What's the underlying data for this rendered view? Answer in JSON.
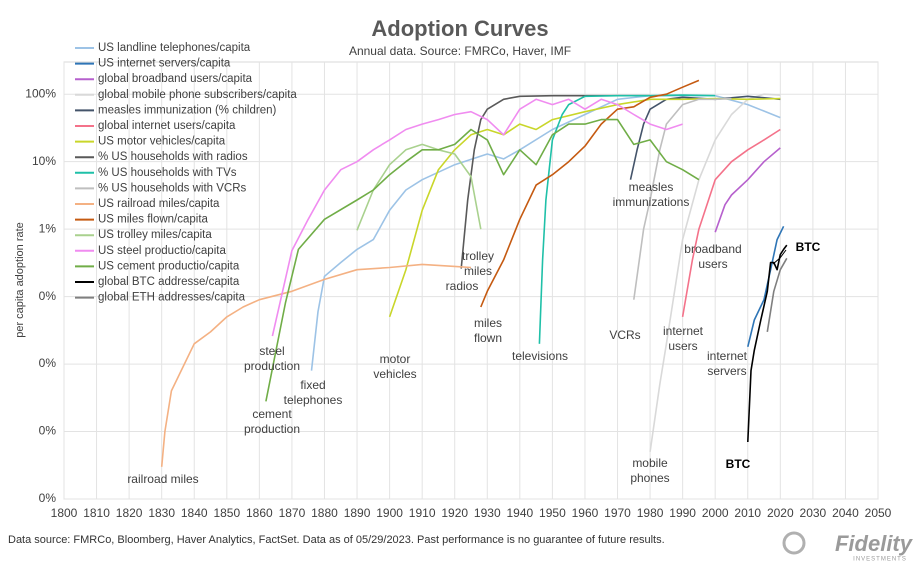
{
  "chart_data": {
    "type": "line",
    "title": "Adoption Curves",
    "subtitle": "Annual data.  Source: FMRCo, Haver, IMF",
    "y_label": "per capita adoption rate",
    "log_y": true,
    "grid": true,
    "legend": "upper left",
    "xlim": [
      1800,
      2050
    ],
    "xticks": [
      1800,
      1810,
      1820,
      1830,
      1840,
      1850,
      1860,
      1870,
      1880,
      1890,
      1900,
      1910,
      1920,
      1930,
      1940,
      1950,
      1960,
      1970,
      1980,
      1990,
      2000,
      2010,
      2020,
      2030,
      2040,
      2050
    ],
    "ylim": [
      0.0001,
      300
    ],
    "yticks": [
      {
        "value": 100,
        "label": "100%"
      },
      {
        "value": 10,
        "label": "10%"
      },
      {
        "value": 1,
        "label": "1%"
      },
      {
        "value": 0.1,
        "label": "0%"
      },
      {
        "value": 0.01,
        "label": "0%"
      },
      {
        "value": 0.001,
        "label": "0%"
      },
      {
        "value": 0.0001,
        "label": "0%"
      }
    ],
    "series": [
      {
        "name": "US landline telephones/capita",
        "color": "#9dc3e6",
        "x": [
          1876,
          1878,
          1880,
          1885,
          1890,
          1895,
          1900,
          1905,
          1910,
          1920,
          1930,
          1935,
          1940,
          1950,
          1960,
          1970,
          1980,
          1990,
          2000,
          2010,
          2020
        ],
        "values": [
          0.008,
          0.06,
          0.2,
          0.32,
          0.5,
          0.7,
          1.9,
          3.8,
          5.4,
          9,
          13,
          11,
          15,
          30,
          50,
          84,
          95,
          95,
          95,
          70,
          45
        ]
      },
      {
        "name": "US internet servers/capita",
        "color": "#2e75b6",
        "x": [
          2010,
          2012,
          2015,
          2017,
          2019,
          2021
        ],
        "values": [
          0.018,
          0.045,
          0.09,
          0.25,
          0.7,
          1.1
        ]
      },
      {
        "name": "global broadband users/capita",
        "color": "#b660cd",
        "x": [
          2000,
          2003,
          2005,
          2010,
          2015,
          2020
        ],
        "values": [
          0.9,
          2.3,
          3.2,
          5.4,
          10,
          16
        ]
      },
      {
        "name": "global mobile phone subscribers/capita",
        "color": "#d9d9d9",
        "x": [
          1980,
          1983,
          1985,
          1990,
          1995,
          2000,
          2005,
          2010,
          2015,
          2020
        ],
        "values": [
          0.0005,
          0.005,
          0.02,
          0.7,
          5.4,
          21,
          50,
          84,
          100,
          97
        ]
      },
      {
        "name": "measles immunization (% children)",
        "color": "#44546a",
        "x": [
          1974,
          1976,
          1978,
          1980,
          1985,
          1990,
          2000,
          2010,
          2020
        ],
        "values": [
          5.4,
          15,
          36,
          60,
          84,
          90,
          84,
          93,
          84
        ]
      },
      {
        "name": "global internet users/capita",
        "color": "#f4728a",
        "x": [
          1990,
          1993,
          1995,
          2000,
          2005,
          2010,
          2015,
          2020
        ],
        "values": [
          0.05,
          0.35,
          1,
          5.4,
          10,
          15,
          21,
          30
        ]
      },
      {
        "name": "US motor vehicles/capita",
        "color": "#c9d62a",
        "x": [
          1900,
          1905,
          1910,
          1915,
          1920,
          1925,
          1930,
          1935,
          1940,
          1945,
          1950,
          1960,
          1970,
          1980,
          1990,
          2000,
          2010,
          2020
        ],
        "values": [
          0.05,
          0.25,
          1.9,
          7.6,
          15,
          25,
          30,
          25,
          36,
          30,
          42,
          55,
          70,
          84,
          84,
          86,
          84,
          86
        ]
      },
      {
        "name": "% US households with radios",
        "color": "#595959",
        "x": [
          1922,
          1924,
          1926,
          1928,
          1930,
          1935,
          1940,
          1950,
          1960,
          1970,
          1980
        ],
        "values": [
          0.26,
          2.7,
          15,
          42,
          60,
          84,
          93,
          95,
          95,
          95,
          95
        ]
      },
      {
        "name": "% US households with TVs",
        "color": "#1fc0a8",
        "x": [
          1946,
          1947,
          1948,
          1950,
          1953,
          1955,
          1960,
          1970,
          1980,
          1990,
          2000
        ],
        "values": [
          0.02,
          0.35,
          2.7,
          21,
          50,
          70,
          93,
          95,
          95,
          97,
          95
        ]
      },
      {
        "name": "% US households with VCRs",
        "color": "#bfbfbf",
        "x": [
          1975,
          1978,
          1980,
          1983,
          1985,
          1990,
          1995,
          2000,
          2005
        ],
        "values": [
          0.09,
          1,
          2.7,
          15,
          36,
          70,
          84,
          84,
          86
        ]
      },
      {
        "name": "US railroad miles/capita",
        "color": "#f4b183",
        "x": [
          1830,
          1831,
          1833,
          1836,
          1840,
          1845,
          1850,
          1855,
          1860,
          1870,
          1880,
          1890,
          1900,
          1910,
          1920,
          1925
        ],
        "values": [
          0.0003,
          0.001,
          0.004,
          0.008,
          0.02,
          0.03,
          0.05,
          0.07,
          0.09,
          0.12,
          0.18,
          0.25,
          0.27,
          0.3,
          0.28,
          0.27
        ]
      },
      {
        "name": "US miles flown/capita",
        "color": "#c55a11",
        "x": [
          1928,
          1930,
          1935,
          1940,
          1945,
          1950,
          1955,
          1960,
          1965,
          1970,
          1975,
          1980,
          1985,
          1990,
          1995
        ],
        "values": [
          0.07,
          0.12,
          0.35,
          1.4,
          4.5,
          6.4,
          10,
          17,
          36,
          60,
          65,
          90,
          100,
          127,
          160
        ]
      },
      {
        "name": "US trolley miles/capita",
        "color": "#a9d18e",
        "x": [
          1890,
          1895,
          1900,
          1905,
          1910,
          1915,
          1920,
          1925,
          1928
        ],
        "values": [
          0.96,
          3.8,
          9,
          15,
          18,
          15,
          13,
          6,
          1
        ]
      },
      {
        "name": "US steel productio/capita",
        "color": "#f08cf0",
        "x": [
          1864,
          1870,
          1875,
          1880,
          1885,
          1890,
          1895,
          1900,
          1905,
          1910,
          1915,
          1920,
          1925,
          1930,
          1935,
          1940,
          1945,
          1950,
          1955,
          1960,
          1965,
          1970,
          1975,
          1980,
          1985,
          1990
        ],
        "values": [
          0.026,
          0.48,
          1.4,
          3.8,
          7.6,
          10,
          15,
          21,
          30,
          36,
          42,
          50,
          55,
          42,
          25,
          60,
          84,
          70,
          84,
          60,
          84,
          70,
          50,
          36,
          30,
          36
        ]
      },
      {
        "name": "US cement productio/capita",
        "color": "#70ad47",
        "x": [
          1862,
          1868,
          1872,
          1880,
          1890,
          1895,
          1900,
          1905,
          1910,
          1915,
          1920,
          1925,
          1930,
          1935,
          1940,
          1945,
          1950,
          1955,
          1960,
          1965,
          1970,
          1975,
          1980,
          1985,
          1990,
          1995
        ],
        "values": [
          0.0028,
          0.08,
          0.5,
          1.4,
          2.7,
          3.8,
          6.4,
          10,
          15,
          15,
          18,
          30,
          21,
          6.4,
          15,
          9,
          25,
          36,
          36,
          42,
          42,
          18,
          21,
          10,
          7.6,
          5.4
        ]
      },
      {
        "name": "global BTC addresse/capita",
        "color": "#000000",
        "x": [
          2010,
          2011,
          2012,
          2014,
          2016,
          2017,
          2018,
          2019,
          2020,
          2021,
          2022
        ],
        "values": [
          0.0007,
          0.008,
          0.016,
          0.045,
          0.12,
          0.32,
          0.32,
          0.25,
          0.42,
          0.5,
          0.58
        ]
      },
      {
        "name": "global ETH addresses/capita",
        "color": "#7f7f7f",
        "x": [
          2016,
          2018,
          2020,
          2022
        ],
        "values": [
          0.03,
          0.12,
          0.25,
          0.37
        ]
      }
    ],
    "annotations": [
      [
        "railroad miles"
      ],
      [
        "steel",
        "production"
      ],
      [
        "cement",
        "production"
      ],
      [
        "fixed",
        "telephones"
      ],
      [
        "motor",
        "vehicles"
      ],
      [
        "radios"
      ],
      [
        "trolley",
        "miles"
      ],
      [
        "miles",
        "flown"
      ],
      [
        "televisions"
      ],
      [
        "VCRs"
      ],
      [
        "measles",
        "immunizations"
      ],
      [
        "broadband",
        "users"
      ],
      [
        "internet",
        "users"
      ],
      [
        "internet",
        "servers"
      ],
      [
        "mobile",
        "phones"
      ],
      [
        "BTC"
      ],
      [
        "BTC"
      ]
    ],
    "footer": "Data source: FMRCo, Bloomberg, Haver Analytics, FactSet. Data as of 05/29/2023. Past performance is no guarantee of future results.",
    "brand": "Fidelity",
    "brand_sub": "INVESTMENTS"
  }
}
